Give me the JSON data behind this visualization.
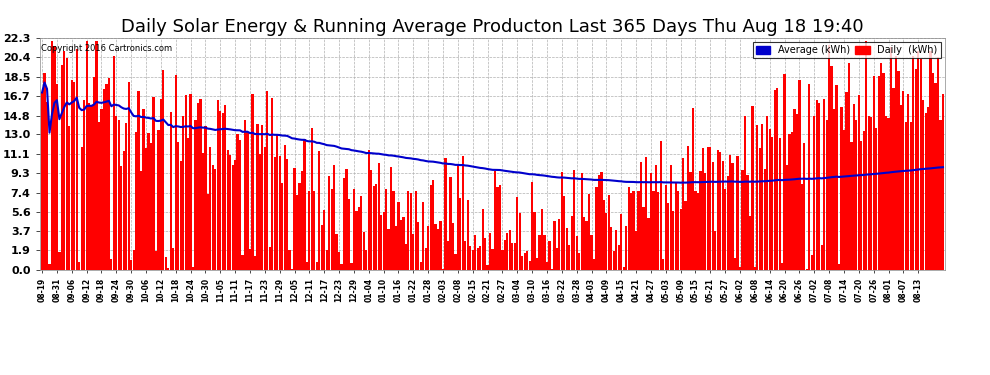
{
  "title": "Daily Solar Energy & Running Average Producton Last 365 Days Thu Aug 18 19:40",
  "copyright": "Copyright 2016 Cartronics.com",
  "bar_color": "#ff0000",
  "avg_line_color": "#0000cc",
  "background_color": "#ffffff",
  "plot_bg_color": "#ffffff",
  "grid_color": "#b0b0b0",
  "yticks": [
    0.0,
    1.9,
    3.7,
    5.6,
    7.4,
    9.3,
    11.1,
    13.0,
    14.8,
    16.7,
    18.5,
    20.4,
    22.3
  ],
  "ymax": 22.3,
  "ymin": 0.0,
  "legend_avg_color": "#0000cc",
  "legend_daily_color": "#ff0000",
  "legend_avg_label": "Average (kWh)",
  "legend_daily_label": "Daily  (kWh)",
  "title_fontsize": 13,
  "avg_linewidth": 1.5,
  "num_bars": 365,
  "x_labels": [
    "08-19",
    "08-31",
    "09-06",
    "09-12",
    "09-18",
    "09-24",
    "09-30",
    "10-06",
    "10-12",
    "10-18",
    "10-24",
    "10-30",
    "11-05",
    "11-11",
    "11-17",
    "11-23",
    "11-29",
    "12-05",
    "12-11",
    "12-17",
    "12-23",
    "12-29",
    "01-04",
    "01-10",
    "01-16",
    "01-22",
    "01-28",
    "02-03",
    "02-08",
    "02-15",
    "02-21",
    "02-27",
    "03-04",
    "03-10",
    "03-16",
    "03-22",
    "03-28",
    "04-03",
    "04-09",
    "04-15",
    "04-21",
    "04-27",
    "05-03",
    "05-09",
    "05-15",
    "05-21",
    "05-27",
    "06-02",
    "06-08",
    "06-14",
    "06-20",
    "06-26",
    "07-02",
    "07-08",
    "07-14",
    "07-20",
    "07-26",
    "08-01",
    "08-07",
    "08-13"
  ]
}
